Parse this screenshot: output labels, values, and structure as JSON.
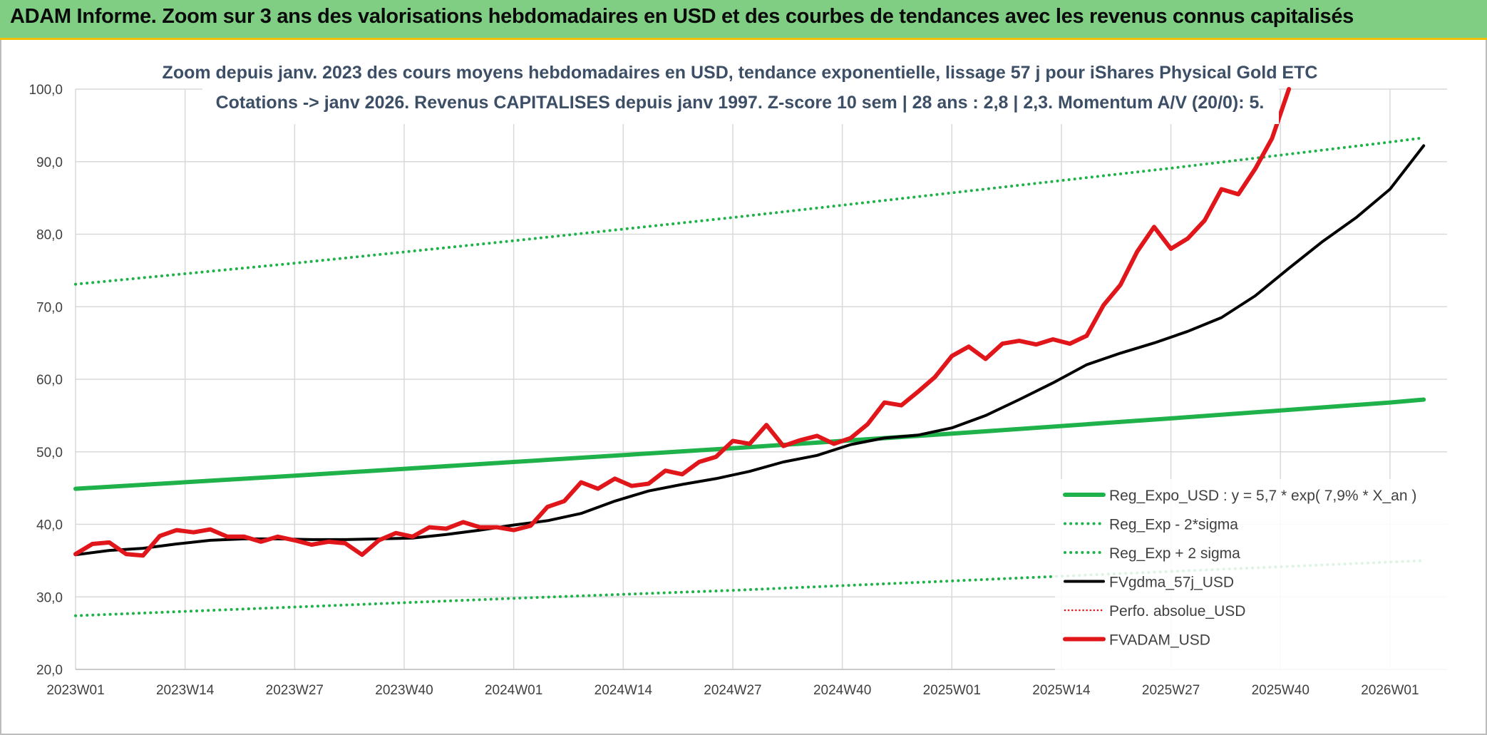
{
  "header": {
    "title": "ADAM Informe. Zoom sur 3 ans des valorisations hebdomadaires en USD et des courbes de tendances avec les revenus connus capitalisés"
  },
  "chart_data": {
    "type": "line",
    "title": "Zoom depuis janv. 2023 des cours moyens hebdomadaires en USD, tendance exponentielle, lissage 57 j pour iShares Physical Gold ETC",
    "subtitle": "Cotations -> janv 2026. Revenus CAPITALISES depuis janv 1997. Z-score 10 sem | 28 ans : 2,8 | 2,3. Momentum A/V (20/0): 5.",
    "xlabel": "",
    "ylabel": "",
    "grid": true,
    "legend_position": "bottom-right",
    "ylim": [
      20,
      100
    ],
    "yticks": [
      "20,0",
      "30,0",
      "40,0",
      "50,0",
      "60,0",
      "70,0",
      "80,0",
      "90,0",
      "100,0"
    ],
    "x_range_weeks": [
      0,
      163
    ],
    "xticks": [
      {
        "label": "2023W01",
        "week": 0
      },
      {
        "label": "2023W14",
        "week": 13
      },
      {
        "label": "2023W27",
        "week": 26
      },
      {
        "label": "2023W40",
        "week": 39
      },
      {
        "label": "2024W01",
        "week": 52
      },
      {
        "label": "2024W14",
        "week": 65
      },
      {
        "label": "2024W27",
        "week": 78
      },
      {
        "label": "2024W40",
        "week": 91
      },
      {
        "label": "2025W01",
        "week": 104
      },
      {
        "label": "2025W14",
        "week": 117
      },
      {
        "label": "2025W27",
        "week": 130
      },
      {
        "label": "2025W40",
        "week": 143
      },
      {
        "label": "2026W01",
        "week": 156
      }
    ],
    "series": [
      {
        "name": "Reg_Expo_USD : y = 5,7 * exp( 7,9% *  X_an )",
        "color": "#1fb24a",
        "style": "solid-thick",
        "points": [
          [
            0,
            44.9
          ],
          [
            26,
            46.7
          ],
          [
            52,
            48.6
          ],
          [
            78,
            50.5
          ],
          [
            104,
            52.5
          ],
          [
            130,
            54.6
          ],
          [
            156,
            56.8
          ],
          [
            160,
            57.2
          ]
        ]
      },
      {
        "name": "Reg_Exp - 2*sigma",
        "color": "#1fb24a",
        "style": "dotted",
        "points": [
          [
            0,
            27.4
          ],
          [
            26,
            28.6
          ],
          [
            52,
            29.8
          ],
          [
            78,
            30.9
          ],
          [
            104,
            32.2
          ],
          [
            130,
            33.5
          ],
          [
            156,
            34.8
          ],
          [
            160,
            35.0
          ]
        ]
      },
      {
        "name": "Reg_Exp + 2 sigma",
        "color": "#1fb24a",
        "style": "dotted",
        "points": [
          [
            0,
            73.1
          ],
          [
            26,
            76.0
          ],
          [
            52,
            79.1
          ],
          [
            78,
            82.3
          ],
          [
            104,
            85.7
          ],
          [
            130,
            89.1
          ],
          [
            156,
            92.7
          ],
          [
            160,
            93.3
          ]
        ]
      },
      {
        "name": "FVgdma_57j_USD",
        "color": "#000000",
        "style": "solid",
        "points": [
          [
            0,
            35.8
          ],
          [
            4,
            36.4
          ],
          [
            8,
            36.7
          ],
          [
            12,
            37.3
          ],
          [
            16,
            37.8
          ],
          [
            20,
            38.0
          ],
          [
            24,
            38.0
          ],
          [
            28,
            37.9
          ],
          [
            32,
            37.9
          ],
          [
            36,
            38.0
          ],
          [
            40,
            38.1
          ],
          [
            44,
            38.6
          ],
          [
            48,
            39.2
          ],
          [
            52,
            39.9
          ],
          [
            56,
            40.5
          ],
          [
            60,
            41.5
          ],
          [
            64,
            43.2
          ],
          [
            68,
            44.6
          ],
          [
            72,
            45.5
          ],
          [
            76,
            46.3
          ],
          [
            80,
            47.3
          ],
          [
            84,
            48.6
          ],
          [
            88,
            49.5
          ],
          [
            92,
            51.0
          ],
          [
            96,
            51.9
          ],
          [
            100,
            52.3
          ],
          [
            104,
            53.3
          ],
          [
            108,
            55.0
          ],
          [
            112,
            57.2
          ],
          [
            116,
            59.5
          ],
          [
            120,
            62.0
          ],
          [
            124,
            63.6
          ],
          [
            128,
            65.0
          ],
          [
            132,
            66.6
          ],
          [
            136,
            68.5
          ],
          [
            140,
            71.5
          ],
          [
            144,
            75.3
          ],
          [
            148,
            79.0
          ],
          [
            152,
            82.3
          ],
          [
            156,
            86.2
          ],
          [
            160,
            92.2
          ]
        ]
      },
      {
        "name": "Perfo. absolue_USD",
        "color": "#e0161b",
        "style": "dotted-thin",
        "points": []
      },
      {
        "name": "FVADAM_USD",
        "color": "#e0161b",
        "style": "solid-thick",
        "points": [
          [
            0,
            35.9
          ],
          [
            2,
            37.3
          ],
          [
            4,
            37.5
          ],
          [
            6,
            35.9
          ],
          [
            8,
            35.7
          ],
          [
            10,
            38.4
          ],
          [
            12,
            39.2
          ],
          [
            14,
            38.9
          ],
          [
            16,
            39.3
          ],
          [
            18,
            38.3
          ],
          [
            20,
            38.3
          ],
          [
            22,
            37.6
          ],
          [
            24,
            38.3
          ],
          [
            26,
            37.8
          ],
          [
            28,
            37.2
          ],
          [
            30,
            37.6
          ],
          [
            32,
            37.4
          ],
          [
            34,
            35.8
          ],
          [
            36,
            37.8
          ],
          [
            38,
            38.8
          ],
          [
            40,
            38.3
          ],
          [
            42,
            39.6
          ],
          [
            44,
            39.4
          ],
          [
            46,
            40.3
          ],
          [
            48,
            39.6
          ],
          [
            50,
            39.6
          ],
          [
            52,
            39.2
          ],
          [
            54,
            39.8
          ],
          [
            56,
            42.4
          ],
          [
            58,
            43.2
          ],
          [
            60,
            45.8
          ],
          [
            62,
            44.9
          ],
          [
            64,
            46.3
          ],
          [
            66,
            45.3
          ],
          [
            68,
            45.6
          ],
          [
            70,
            47.4
          ],
          [
            72,
            46.9
          ],
          [
            74,
            48.6
          ],
          [
            76,
            49.3
          ],
          [
            78,
            51.5
          ],
          [
            80,
            51.1
          ],
          [
            82,
            53.7
          ],
          [
            84,
            50.8
          ],
          [
            86,
            51.6
          ],
          [
            88,
            52.2
          ],
          [
            90,
            51.1
          ],
          [
            92,
            51.9
          ],
          [
            94,
            53.8
          ],
          [
            96,
            56.8
          ],
          [
            98,
            56.4
          ],
          [
            100,
            58.3
          ],
          [
            102,
            60.3
          ],
          [
            104,
            63.2
          ],
          [
            106,
            64.5
          ],
          [
            108,
            62.8
          ],
          [
            110,
            64.9
          ],
          [
            112,
            65.3
          ],
          [
            114,
            64.8
          ],
          [
            116,
            65.5
          ],
          [
            118,
            64.9
          ],
          [
            120,
            66.0
          ],
          [
            122,
            70.2
          ],
          [
            124,
            73.0
          ],
          [
            126,
            77.6
          ],
          [
            128,
            81.0
          ],
          [
            130,
            78.0
          ],
          [
            132,
            79.4
          ],
          [
            134,
            81.9
          ],
          [
            136,
            86.2
          ],
          [
            138,
            85.5
          ],
          [
            140,
            89.0
          ],
          [
            142,
            93.2
          ],
          [
            144,
            100.0
          ]
        ]
      }
    ]
  }
}
